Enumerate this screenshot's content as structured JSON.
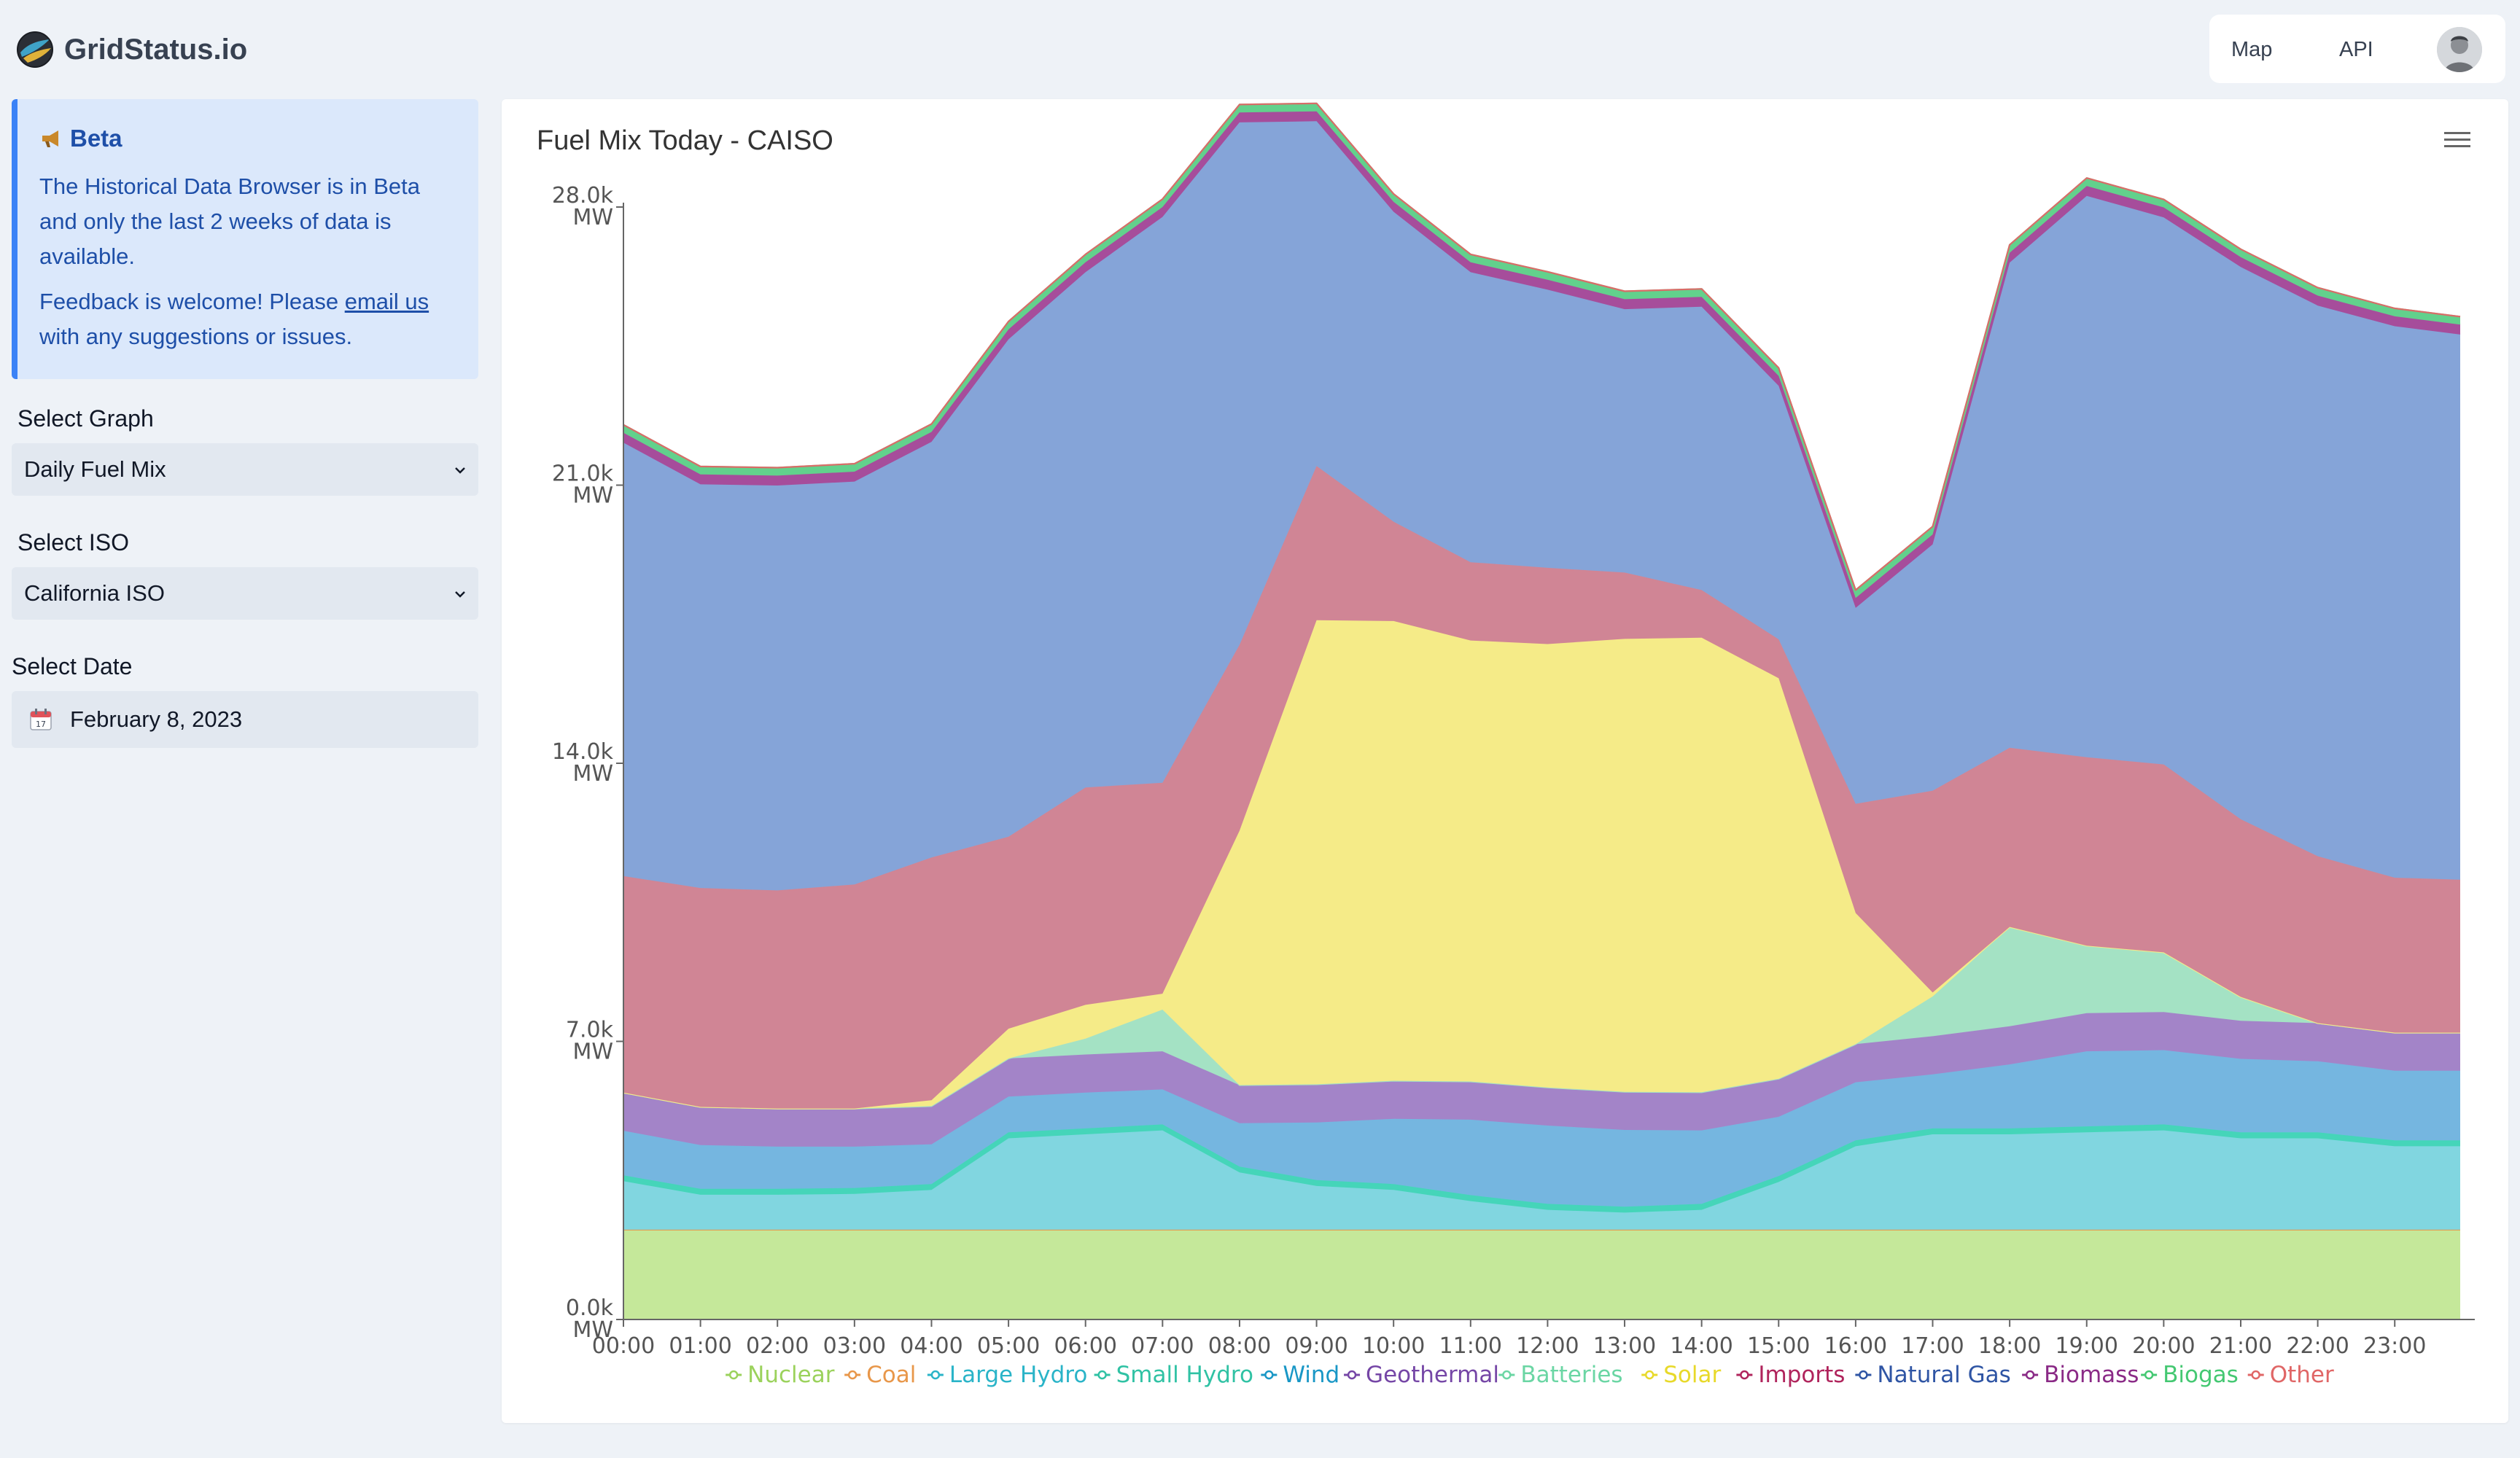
{
  "app": {
    "name": "GridStatus.io"
  },
  "nav": {
    "map": "Map",
    "api": "API"
  },
  "beta": {
    "title": "Beta",
    "text1": "The Historical Data Browser is in Beta and only the last 2 weeks of data is available.",
    "text2_pre": "Feedback is welcome! Please ",
    "text2_link": "email us",
    "text2_post": " with any suggestions or issues."
  },
  "controls": {
    "graph_label": "Select Graph",
    "graph_value": "Daily Fuel Mix",
    "iso_label": "Select ISO",
    "iso_value": "California ISO",
    "date_label": "Select Date",
    "date_value": "February 8, 2023"
  },
  "colors": {
    "accent": "#3b82f6",
    "beta_bg": "#dbe8fb",
    "beta_text": "#1e4fa8"
  },
  "chart_data": {
    "type": "area",
    "stacked": true,
    "title": "Fuel Mix Today - CAISO",
    "y_unit": "MW",
    "ylim": [
      0,
      28000
    ],
    "y_ticks": [
      {
        "value": 0,
        "label": "0.0k",
        "unit": "MW"
      },
      {
        "value": 7000,
        "label": "7.0k",
        "unit": "MW"
      },
      {
        "value": 14000,
        "label": "14.0k",
        "unit": "MW"
      },
      {
        "value": 21000,
        "label": "21.0k",
        "unit": "MW"
      },
      {
        "value": 28000,
        "label": "28.0k",
        "unit": "MW"
      }
    ],
    "x_labels": [
      "00:00",
      "01:00",
      "02:00",
      "03:00",
      "04:00",
      "05:00",
      "06:00",
      "07:00",
      "08:00",
      "09:00",
      "10:00",
      "11:00",
      "12:00",
      "13:00",
      "14:00",
      "15:00",
      "16:00",
      "17:00",
      "18:00",
      "19:00",
      "20:00",
      "21:00",
      "22:00",
      "23:00"
    ],
    "xlim": [
      0,
      23.85
    ],
    "x": [
      0,
      1,
      2,
      3,
      4,
      5,
      6,
      7,
      8,
      9,
      10,
      11,
      12,
      13,
      14,
      15,
      16,
      17,
      18,
      19,
      20,
      21,
      22,
      23,
      23.85
    ],
    "series": [
      {
        "name": "Nuclear",
        "color": "#c5e89a",
        "values": [
          2260,
          2260,
          2260,
          2260,
          2260,
          2260,
          2260,
          2260,
          2260,
          2260,
          2260,
          2260,
          2260,
          2260,
          2260,
          2260,
          2260,
          2260,
          2260,
          2260,
          2260,
          2260,
          2260,
          2260,
          2260
        ]
      },
      {
        "name": "Coal",
        "color": "#e8974a",
        "values": [
          0,
          0,
          0,
          0,
          0,
          0,
          0,
          0,
          0,
          0,
          0,
          0,
          0,
          0,
          0,
          0,
          0,
          0,
          0,
          0,
          0,
          0,
          0,
          0,
          0
        ]
      },
      {
        "name": "Large Hydro",
        "color": "#81d6e0",
        "values": [
          1220,
          880,
          880,
          900,
          1000,
          2300,
          2400,
          2500,
          1440,
          1100,
          1000,
          720,
          500,
          430,
          500,
          1200,
          2100,
          2400,
          2400,
          2450,
          2500,
          2300,
          2300,
          2100,
          2100
        ]
      },
      {
        "name": "Small Hydro",
        "color": "#45d5b9",
        "values": [
          150,
          150,
          150,
          150,
          150,
          150,
          150,
          150,
          150,
          150,
          150,
          150,
          150,
          150,
          150,
          150,
          150,
          150,
          150,
          150,
          150,
          150,
          150,
          150,
          150
        ]
      },
      {
        "name": "Wind",
        "color": "#75b6e0",
        "values": [
          1120,
          1100,
          1060,
          1040,
          1000,
          900,
          900,
          880,
          1090,
          1450,
          1640,
          1900,
          1970,
          1930,
          1850,
          1490,
          1460,
          1360,
          1610,
          1890,
          1870,
          1850,
          1790,
          1750,
          1750
        ]
      },
      {
        "name": "Geothermal",
        "color": "#a384c8",
        "values": [
          960,
          960,
          960,
          960,
          960,
          960,
          960,
          960,
          960,
          960,
          960,
          960,
          960,
          960,
          960,
          960,
          960,
          960,
          960,
          960,
          960,
          960,
          960,
          960,
          960
        ]
      },
      {
        "name": "Batteries",
        "color": "#a4e2c4",
        "values": [
          0,
          0,
          0,
          0,
          0,
          0,
          400,
          1050,
          0,
          0,
          0,
          0,
          0,
          0,
          0,
          0,
          0,
          1000,
          2500,
          1700,
          1500,
          600,
          0,
          0,
          0
        ]
      },
      {
        "name": "Solar",
        "color": "#f5eb88",
        "values": [
          0,
          0,
          0,
          0,
          150,
          750,
          850,
          400,
          6400,
          11680,
          11570,
          11100,
          11160,
          11400,
          11440,
          10080,
          3300,
          100,
          0,
          0,
          0,
          0,
          0,
          0,
          0
        ]
      },
      {
        "name": "Imports",
        "color": "#d08595",
        "values": [
          5450,
          5510,
          5490,
          5640,
          6110,
          4830,
          5470,
          5310,
          4680,
          3880,
          2500,
          1970,
          1920,
          1670,
          1200,
          980,
          2750,
          5080,
          4510,
          4740,
          4730,
          4470,
          4200,
          3900,
          3850
        ]
      },
      {
        "name": "Natural Gas",
        "color": "#85a4d8",
        "values": [
          10910,
          10160,
          10190,
          10140,
          10460,
          12520,
          12970,
          14240,
          13150,
          8680,
          7800,
          7300,
          7000,
          6630,
          7130,
          6380,
          4930,
          6200,
          12210,
          14130,
          13770,
          13900,
          13860,
          13880,
          13720
        ]
      },
      {
        "name": "Biomass",
        "color": "#a64d9b",
        "values": [
          250,
          250,
          250,
          250,
          250,
          250,
          250,
          250,
          250,
          250,
          250,
          250,
          250,
          250,
          250,
          250,
          250,
          250,
          250,
          250,
          250,
          250,
          250,
          250,
          250
        ]
      },
      {
        "name": "Biogas",
        "color": "#62d18c",
        "values": [
          200,
          200,
          200,
          200,
          200,
          200,
          200,
          200,
          200,
          200,
          200,
          200,
          200,
          200,
          200,
          200,
          200,
          200,
          200,
          200,
          200,
          200,
          200,
          200,
          200
        ]
      },
      {
        "name": "Other",
        "color": "#e06666",
        "values": [
          0,
          0,
          0,
          0,
          0,
          0,
          0,
          0,
          0,
          0,
          0,
          0,
          0,
          0,
          0,
          0,
          0,
          0,
          0,
          0,
          0,
          0,
          0,
          0,
          0
        ]
      }
    ],
    "legend": [
      "Nuclear",
      "Coal",
      "Large Hydro",
      "Small Hydro",
      "Wind",
      "Geothermal",
      "Batteries",
      "Solar",
      "Imports",
      "Natural Gas",
      "Biomass",
      "Biogas",
      "Other"
    ],
    "legend_position": "bottom-center",
    "legend_colors": [
      "#9bd25c",
      "#e8974a",
      "#2ab4c8",
      "#30c2a4",
      "#1997c6",
      "#7546a6",
      "#6bd6a4",
      "#e8d92a",
      "#b0245c",
      "#2f55a4",
      "#8a2a86",
      "#44c872",
      "#e06666"
    ]
  }
}
